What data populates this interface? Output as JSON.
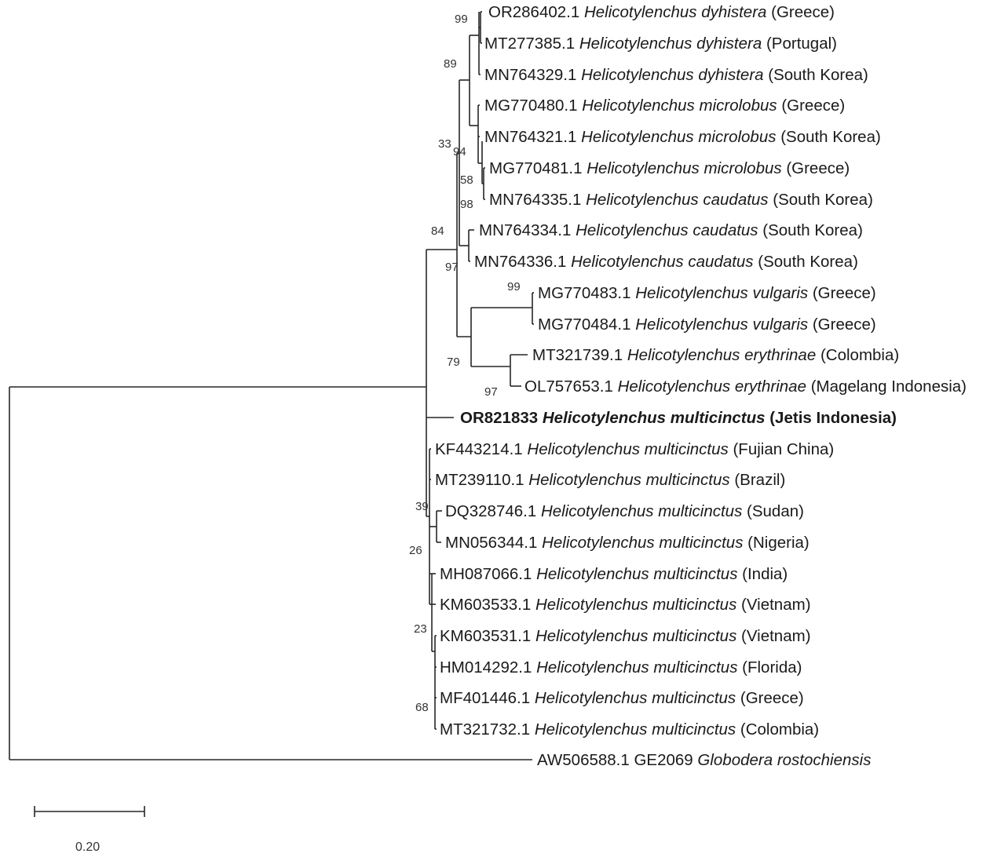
{
  "taxa": [
    {
      "acc": "OR286402.1",
      "species": "Helicotylenchus dyhistera",
      "loc": "(Greece)"
    },
    {
      "acc": "MT277385.1",
      "species": "Helicotylenchus dyhistera",
      "loc": "(Portugal)"
    },
    {
      "acc": "MN764329.1",
      "species": "Helicotylenchus dyhistera",
      "loc": "(South Korea)"
    },
    {
      "acc": "MG770480.1",
      "species": "Helicotylenchus microlobus",
      "loc": "(Greece)"
    },
    {
      "acc": "MN764321.1",
      "species": "Helicotylenchus microlobus",
      "loc": "(South Korea)"
    },
    {
      "acc": "MG770481.1",
      "species": "Helicotylenchus microlobus",
      "loc": "(Greece)"
    },
    {
      "acc": "MN764335.1",
      "species": "Helicotylenchus caudatus",
      "loc": "(South Korea)"
    },
    {
      "acc": "MN764334.1",
      "species": "Helicotylenchus caudatus",
      "loc": "(South Korea)"
    },
    {
      "acc": "MN764336.1",
      "species": "Helicotylenchus caudatus",
      "loc": "(South Korea)"
    },
    {
      "acc": "MG770483.1",
      "species": "Helicotylenchus vulgaris",
      "loc": "(Greece)"
    },
    {
      "acc": "MG770484.1",
      "species": "Helicotylenchus vulgaris",
      "loc": "(Greece)"
    },
    {
      "acc": "MT321739.1",
      "species": "Helicotylenchus erythrinae",
      "loc": "(Colombia)"
    },
    {
      "acc": "OL757653.1",
      "species": "Helicotylenchus erythrinae",
      "loc": "(Magelang Indonesia)"
    },
    {
      "acc": "OR821833",
      "species": "Helicotylenchus multicinctus",
      "loc": "(Jetis Indonesia)"
    },
    {
      "acc": "KF443214.1",
      "species": "Helicotylenchus multicinctus",
      "loc": "(Fujian China)"
    },
    {
      "acc": "MT239110.1",
      "species": "Helicotylenchus multicinctus",
      "loc": "(Brazil)"
    },
    {
      "acc": "DQ328746.1",
      "species": "Helicotylenchus multicinctus",
      "loc": "(Sudan)"
    },
    {
      "acc": "MN056344.1",
      "species": "Helicotylenchus multicinctus",
      "loc": "(Nigeria)"
    },
    {
      "acc": "MH087066.1",
      "species": "Helicotylenchus multicinctus",
      "loc": "(India)"
    },
    {
      "acc": "KM603533.1",
      "species": "Helicotylenchus multicinctus",
      "loc": "(Vietnam)"
    },
    {
      "acc": "KM603531.1",
      "species": "Helicotylenchus multicinctus",
      "loc": "(Vietnam)"
    },
    {
      "acc": "HM014292.1",
      "species": "Helicotylenchus multicinctus",
      "loc": "(Florida)"
    },
    {
      "acc": "MF401446.1",
      "species": "Helicotylenchus multicinctus",
      "loc": "(Greece)"
    },
    {
      "acc": "MT321732.1",
      "species": "Helicotylenchus multicinctus",
      "loc": "(Colombia)"
    },
    {
      "acc": "AW506588.1 GE2069",
      "species": "Globodera rostochiensis",
      "loc": ""
    }
  ],
  "bootstrap": [
    "99",
    "89",
    "33",
    "94",
    "58",
    "98",
    "84",
    "97",
    "99",
    "79",
    "97",
    "39",
    "26",
    "23",
    "68"
  ],
  "scale_bar": {
    "label": "0.20"
  },
  "colors": {
    "branch": "#262626",
    "text": "#1a1a1a",
    "support": "#333333"
  }
}
